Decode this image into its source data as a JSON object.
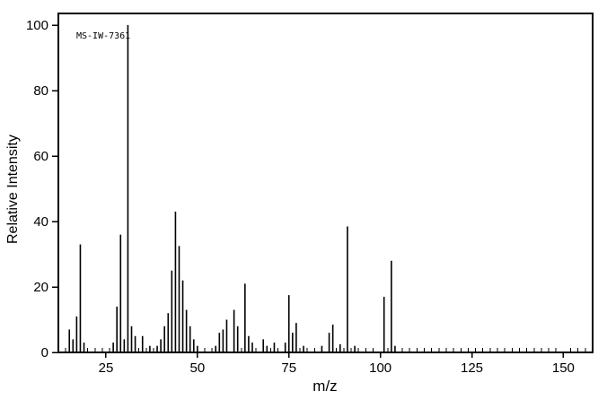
{
  "page": {
    "background": "#ffffff"
  },
  "chart_data": {
    "type": "bar",
    "subtype": "mass-spectrum",
    "annotation": "MS-IW-7361",
    "xlabel": "m/z",
    "ylabel": "Relative Intensity",
    "xlim": [
      12,
      158
    ],
    "ylim": [
      0,
      100
    ],
    "x_major_ticks": [
      25,
      50,
      75,
      100,
      125,
      150
    ],
    "x_minor_tick_step": 2,
    "x_minor_tick_range": [
      14,
      156
    ],
    "y_major_ticks": [
      0,
      20,
      40,
      60,
      80,
      100
    ],
    "axis_color": "#000000",
    "peak_color": "#000000",
    "peaks": [
      [
        15,
        7
      ],
      [
        16,
        4
      ],
      [
        17,
        11
      ],
      [
        18,
        33
      ],
      [
        19,
        3
      ],
      [
        27,
        3
      ],
      [
        28,
        14
      ],
      [
        29,
        36
      ],
      [
        30,
        4
      ],
      [
        31,
        100
      ],
      [
        32,
        8
      ],
      [
        33,
        5
      ],
      [
        35,
        5
      ],
      [
        37,
        2
      ],
      [
        39,
        2
      ],
      [
        40,
        4
      ],
      [
        41,
        8
      ],
      [
        42,
        12
      ],
      [
        43,
        25
      ],
      [
        44,
        43
      ],
      [
        45,
        32.5
      ],
      [
        46,
        22
      ],
      [
        47,
        13
      ],
      [
        48,
        8
      ],
      [
        49,
        4
      ],
      [
        50,
        2
      ],
      [
        55,
        2
      ],
      [
        56,
        6
      ],
      [
        57,
        7
      ],
      [
        58,
        10
      ],
      [
        60,
        13
      ],
      [
        61,
        8
      ],
      [
        63,
        21
      ],
      [
        64,
        5
      ],
      [
        65,
        3
      ],
      [
        68,
        4
      ],
      [
        69,
        2
      ],
      [
        71,
        3
      ],
      [
        74,
        3
      ],
      [
        75,
        17.5
      ],
      [
        76,
        6
      ],
      [
        77,
        9
      ],
      [
        79,
        2
      ],
      [
        84,
        2
      ],
      [
        86,
        6
      ],
      [
        87,
        8.5
      ],
      [
        89,
        2.5
      ],
      [
        91,
        38.5
      ],
      [
        93,
        2
      ],
      [
        101,
        17
      ],
      [
        103,
        28
      ],
      [
        104,
        2
      ]
    ]
  }
}
